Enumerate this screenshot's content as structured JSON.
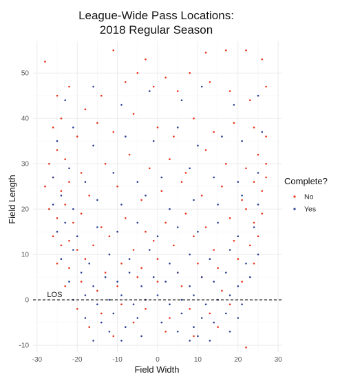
{
  "chart_data": {
    "type": "scatter",
    "title_line1": "League-Wide Pass Locations:",
    "title_line2": "2018 Regular Season",
    "xlabel": "Field Width",
    "ylabel": "Field Length",
    "xlim": [
      -31,
      31
    ],
    "ylim": [
      -11.5,
      57
    ],
    "x_ticks": [
      -30,
      -20,
      -10,
      0,
      10,
      20,
      30
    ],
    "y_ticks": [
      -10,
      0,
      10,
      20,
      30,
      40,
      50
    ],
    "grid": true,
    "legend_placement": "right",
    "legend": {
      "title": "Complete?",
      "entries": [
        {
          "label": "No",
          "color": "#e8341a"
        },
        {
          "label": "Yes",
          "color": "#2c3f94"
        }
      ]
    },
    "annotations": [
      {
        "text": "LOS",
        "x": -27.5,
        "y": 0,
        "line": "dashed horizontal at y = 0"
      }
    ],
    "density_description": "Thousands of individual pass locations; dense band between y = -5 and y = 15 across the field, dense near both sidelines (x about -25 and 25) up to y = 30, sparse deep middle up to y = 55.",
    "series": [
      {
        "name": "No",
        "color": "#e8341a",
        "points": [
          [
            -28,
            52.5
          ],
          [
            -11,
            55
          ],
          [
            -3,
            53
          ],
          [
            12,
            54.5
          ],
          [
            17,
            55
          ],
          [
            22,
            55
          ],
          [
            26,
            53
          ],
          [
            -25,
            45
          ],
          [
            -22,
            47
          ],
          [
            -18,
            42
          ],
          [
            -14,
            45
          ],
          [
            -8,
            48
          ],
          [
            -5,
            50
          ],
          [
            -1,
            47
          ],
          [
            2,
            49
          ],
          [
            5,
            46
          ],
          [
            8,
            50
          ],
          [
            13,
            48
          ],
          [
            18,
            46
          ],
          [
            23,
            44
          ],
          [
            27,
            47
          ],
          [
            -26,
            38
          ],
          [
            -24,
            40
          ],
          [
            -20,
            36
          ],
          [
            -15,
            39
          ],
          [
            -11,
            37
          ],
          [
            -6,
            41
          ],
          [
            0,
            38
          ],
          [
            4,
            36
          ],
          [
            9,
            40
          ],
          [
            14,
            37
          ],
          [
            19,
            39
          ],
          [
            24,
            38
          ],
          [
            27,
            36
          ],
          [
            -27,
            30
          ],
          [
            -25,
            33
          ],
          [
            -23,
            31
          ],
          [
            -19,
            28
          ],
          [
            -13,
            30
          ],
          [
            -7,
            32
          ],
          [
            -2,
            29
          ],
          [
            3,
            31
          ],
          [
            7,
            28
          ],
          [
            12,
            33
          ],
          [
            17,
            30
          ],
          [
            22,
            29
          ],
          [
            25,
            32
          ],
          [
            27,
            30
          ],
          [
            -28,
            25
          ],
          [
            -26,
            27
          ],
          [
            -24,
            24
          ],
          [
            -22,
            26
          ],
          [
            -17,
            23
          ],
          [
            -10,
            25
          ],
          [
            -4,
            22
          ],
          [
            1,
            24
          ],
          [
            6,
            26
          ],
          [
            11,
            23
          ],
          [
            16,
            25
          ],
          [
            21,
            22
          ],
          [
            24,
            26
          ],
          [
            26,
            24
          ],
          [
            27,
            27
          ],
          [
            -27,
            20
          ],
          [
            -25,
            18
          ],
          [
            -23,
            21
          ],
          [
            -21,
            17
          ],
          [
            -19,
            19
          ],
          [
            -14,
            16
          ],
          [
            -8,
            18
          ],
          [
            -3,
            15
          ],
          [
            2,
            17
          ],
          [
            7,
            19
          ],
          [
            12,
            16
          ],
          [
            18,
            18
          ],
          [
            22,
            20
          ],
          [
            24,
            17
          ],
          [
            26,
            19
          ],
          [
            -26,
            14
          ],
          [
            -24,
            12
          ],
          [
            -22,
            13
          ],
          [
            -20,
            11
          ],
          [
            -16,
            12
          ],
          [
            -12,
            14
          ],
          [
            -6,
            11
          ],
          [
            -1,
            13
          ],
          [
            4,
            12
          ],
          [
            9,
            14
          ],
          [
            14,
            11
          ],
          [
            19,
            13
          ],
          [
            23,
            12
          ],
          [
            25,
            14
          ],
          [
            -25,
            8
          ],
          [
            -22,
            7
          ],
          [
            -18,
            9
          ],
          [
            -13,
            6
          ],
          [
            -9,
            8
          ],
          [
            -4,
            7
          ],
          [
            0,
            9
          ],
          [
            5,
            6
          ],
          [
            10,
            8
          ],
          [
            15,
            7
          ],
          [
            20,
            9
          ],
          [
            24,
            8
          ],
          [
            -23,
            3
          ],
          [
            -19,
            4
          ],
          [
            -15,
            2
          ],
          [
            -10,
            3
          ],
          [
            -5,
            5
          ],
          [
            0,
            4
          ],
          [
            6,
            3
          ],
          [
            11,
            5
          ],
          [
            16,
            2
          ],
          [
            21,
            4
          ],
          [
            -20,
            -2
          ],
          [
            -14,
            -3
          ],
          [
            -9,
            -1
          ],
          [
            -3,
            -2
          ],
          [
            3,
            -4
          ],
          [
            8,
            -2
          ],
          [
            13,
            -3
          ],
          [
            18,
            -1
          ],
          [
            -17,
            -6
          ],
          [
            -11,
            -8
          ],
          [
            -6,
            -5
          ],
          [
            2,
            -7
          ],
          [
            9,
            -8
          ],
          [
            15,
            -6
          ],
          [
            22,
            -10.5
          ]
        ]
      },
      {
        "name": "Yes",
        "color": "#2c3f94",
        "points": [
          [
            -23,
            44
          ],
          [
            -16,
            47
          ],
          [
            -9,
            43
          ],
          [
            -2,
            46
          ],
          [
            6,
            44
          ],
          [
            11,
            47
          ],
          [
            19,
            43
          ],
          [
            25,
            45
          ],
          [
            -25,
            35
          ],
          [
            -21,
            38
          ],
          [
            -16,
            34
          ],
          [
            -8,
            36
          ],
          [
            -1,
            35
          ],
          [
            5,
            38
          ],
          [
            10,
            34
          ],
          [
            16,
            36
          ],
          [
            21,
            35
          ],
          [
            26,
            37
          ],
          [
            -26,
            27
          ],
          [
            -22,
            29
          ],
          [
            -18,
            26
          ],
          [
            -11,
            28
          ],
          [
            -5,
            26
          ],
          [
            1,
            27
          ],
          [
            8,
            29
          ],
          [
            14,
            27
          ],
          [
            20,
            26
          ],
          [
            25,
            28
          ],
          [
            -26,
            21
          ],
          [
            -24,
            23
          ],
          [
            -21,
            20
          ],
          [
            -15,
            22
          ],
          [
            -9,
            21
          ],
          [
            -3,
            23
          ],
          [
            3,
            20
          ],
          [
            9,
            22
          ],
          [
            15,
            21
          ],
          [
            21,
            23
          ],
          [
            25,
            21
          ],
          [
            -25,
            15
          ],
          [
            -23,
            17
          ],
          [
            -20,
            14
          ],
          [
            -15,
            16
          ],
          [
            -10,
            15
          ],
          [
            -5,
            17
          ],
          [
            0,
            14
          ],
          [
            5,
            16
          ],
          [
            10,
            15
          ],
          [
            15,
            17
          ],
          [
            20,
            14
          ],
          [
            24,
            16
          ],
          [
            -24,
            9
          ],
          [
            -21,
            11
          ],
          [
            -17,
            8
          ],
          [
            -12,
            10
          ],
          [
            -7,
            9
          ],
          [
            -2,
            11
          ],
          [
            3,
            8
          ],
          [
            8,
            10
          ],
          [
            13,
            9
          ],
          [
            18,
            11
          ],
          [
            22,
            8
          ],
          [
            25,
            10
          ],
          [
            -22,
            4
          ],
          [
            -19,
            6
          ],
          [
            -16,
            3
          ],
          [
            -13,
            5
          ],
          [
            -10,
            4
          ],
          [
            -7,
            6
          ],
          [
            -4,
            3
          ],
          [
            -1,
            5
          ],
          [
            2,
            4
          ],
          [
            5,
            6
          ],
          [
            8,
            3
          ],
          [
            11,
            5
          ],
          [
            14,
            4
          ],
          [
            17,
            6
          ],
          [
            20,
            3
          ],
          [
            23,
            5
          ],
          [
            -21,
            0
          ],
          [
            -18,
            1
          ],
          [
            -15,
            -1
          ],
          [
            -12,
            0
          ],
          [
            -9,
            1
          ],
          [
            -6,
            -1
          ],
          [
            -3,
            0
          ],
          [
            0,
            1
          ],
          [
            3,
            -1
          ],
          [
            6,
            0
          ],
          [
            9,
            1
          ],
          [
            12,
            -1
          ],
          [
            15,
            0
          ],
          [
            18,
            1
          ],
          [
            21,
            -1
          ],
          [
            -18,
            -4
          ],
          [
            -14,
            -5
          ],
          [
            -11,
            -3
          ],
          [
            -8,
            -6
          ],
          [
            -5,
            -4
          ],
          [
            1,
            -5
          ],
          [
            6,
            -3
          ],
          [
            9,
            -6
          ],
          [
            11,
            -4
          ],
          [
            14,
            -5
          ],
          [
            17,
            -3
          ],
          [
            20,
            -4
          ],
          [
            -16,
            -9
          ],
          [
            -12,
            -7
          ],
          [
            -9,
            -9
          ],
          [
            -4,
            -8
          ],
          [
            5,
            -7
          ],
          [
            8,
            -9
          ],
          [
            10,
            -8
          ],
          [
            13,
            -9
          ],
          [
            18,
            -7
          ]
        ]
      }
    ]
  }
}
